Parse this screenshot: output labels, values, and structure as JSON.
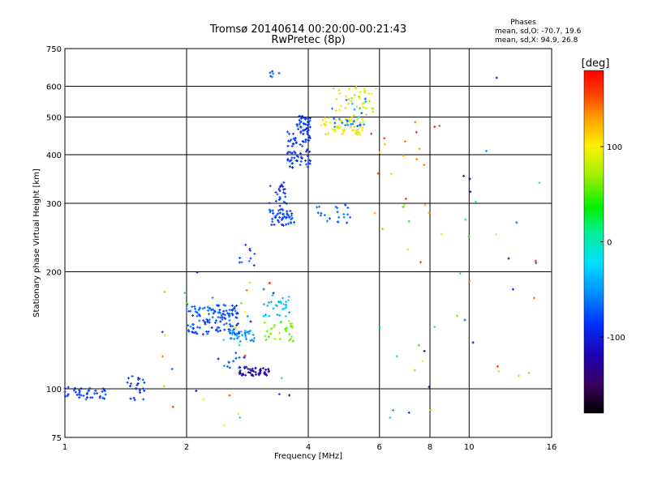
{
  "chart_data": {
    "type": "scatter",
    "title": "Tromsø 20140614 00:20:00-00:21:43",
    "subtitle": "RwPretec (8p)",
    "xlabel": "Frequency [MHz]",
    "ylabel": "Stationary phase Virtual Height [km]",
    "x_scale": "log",
    "y_scale": "log",
    "xlim": [
      1,
      16
    ],
    "ylim": [
      75,
      750
    ],
    "x_ticks": [
      1,
      2,
      4,
      6,
      8,
      10,
      16
    ],
    "x_tick_labels": [
      "1",
      "2",
      "4",
      "6",
      "8",
      "10",
      "16"
    ],
    "y_ticks": [
      75,
      100,
      200,
      300,
      400,
      500,
      600,
      750
    ],
    "y_tick_labels": [
      "75",
      "100",
      "200",
      "300",
      "400",
      "500",
      "600",
      "750"
    ],
    "grid": true,
    "stats": {
      "heading": "Phases",
      "line_o": "mean, sd,O: -70.7, 19.6",
      "line_x": "mean, sd,X:  94.9, 26.8"
    },
    "colorbar": {
      "label": "[deg]",
      "range": [
        -180,
        180
      ],
      "ticks": [
        100,
        0,
        -100
      ],
      "tick_labels": [
        "100",
        "0",
        "-100"
      ]
    },
    "clusters": [
      {
        "f": [
          1.0,
          1.28
        ],
        "h": [
          94,
          101
        ],
        "p": [
          -95,
          -75
        ],
        "n": 40
      },
      {
        "f": [
          1.42,
          1.58
        ],
        "h": [
          91,
          108
        ],
        "p": [
          -105,
          -75
        ],
        "n": 22
      },
      {
        "f": [
          2.0,
          2.7
        ],
        "h": [
          138,
          165
        ],
        "p": [
          -95,
          -60
        ],
        "n": 130
      },
      {
        "f": [
          2.55,
          2.95
        ],
        "h": [
          132,
          142
        ],
        "p": [
          -65,
          -35
        ],
        "n": 30
      },
      {
        "f": [
          2.7,
          3.2
        ],
        "h": [
          108,
          114
        ],
        "p": [
          -135,
          -110
        ],
        "n": 45
      },
      {
        "f": [
          2.5,
          2.8
        ],
        "h": [
          113,
          124
        ],
        "p": [
          -85,
          -55
        ],
        "n": 12
      },
      {
        "f": [
          3.1,
          3.6
        ],
        "h": [
          153,
          175
        ],
        "p": [
          -45,
          -20
        ],
        "n": 30
      },
      {
        "f": [
          3.1,
          3.7
        ],
        "h": [
          132,
          150
        ],
        "p": [
          40,
          80
        ],
        "n": 28
      },
      {
        "f": [
          2.7,
          2.95
        ],
        "h": [
          205,
          235
        ],
        "p": [
          -90,
          -60
        ],
        "n": 10
      },
      {
        "f": [
          3.2,
          3.7
        ],
        "h": [
          263,
          290
        ],
        "p": [
          -95,
          -65
        ],
        "n": 50
      },
      {
        "f": [
          3.2,
          3.55
        ],
        "h": [
          295,
          340
        ],
        "p": [
          -100,
          -70
        ],
        "n": 25
      },
      {
        "f": [
          3.55,
          4.05
        ],
        "h": [
          370,
          460
        ],
        "p": [
          -100,
          -70
        ],
        "n": 70
      },
      {
        "f": [
          3.75,
          4.05
        ],
        "h": [
          455,
          505
        ],
        "p": [
          -100,
          -70
        ],
        "n": 40
      },
      {
        "f": [
          4.1,
          5.1
        ],
        "h": [
          263,
          300
        ],
        "p": [
          -85,
          -55
        ],
        "n": 22
      },
      {
        "f": [
          4.3,
          5.5
        ],
        "h": [
          450,
          500
        ],
        "p": [
          80,
          115
        ],
        "n": 60
      },
      {
        "f": [
          4.6,
          5.9
        ],
        "h": [
          500,
          600
        ],
        "p": [
          70,
          115
        ],
        "n": 40
      },
      {
        "f": [
          4.5,
          5.6
        ],
        "h": [
          470,
          560
        ],
        "p": [
          -75,
          -35
        ],
        "n": 25
      },
      {
        "f": [
          3.2,
          3.45
        ],
        "h": [
          630,
          660
        ],
        "p": [
          -90,
          -50
        ],
        "n": 6
      },
      {
        "f": [
          5.6,
          9.0
        ],
        "h": [
          280,
          500
        ],
        "p": [
          100,
          170
        ],
        "n": 18
      },
      {
        "f": [
          6.0,
          15.0
        ],
        "h": [
          80,
          650
        ],
        "p": [
          -170,
          170
        ],
        "n": 45
      },
      {
        "f": [
          1.7,
          3.6
        ],
        "h": [
          80,
          200
        ],
        "p": [
          -170,
          170
        ],
        "n": 35
      }
    ]
  }
}
